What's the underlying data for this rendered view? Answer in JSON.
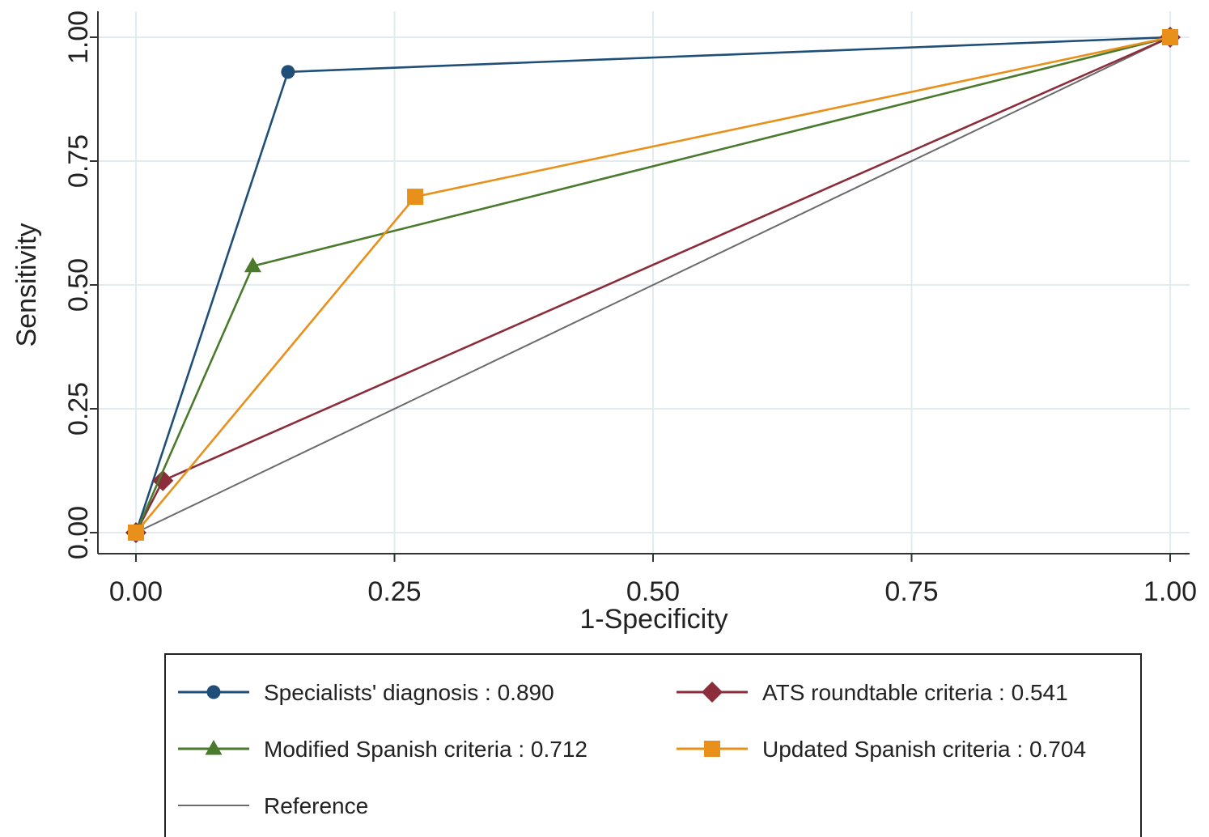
{
  "chart_data": {
    "type": "line",
    "xlabel": "1-Specificity",
    "ylabel": "Sensitivity",
    "xlim": [
      0,
      1
    ],
    "ylim": [
      0,
      1
    ],
    "xticks": [
      "0.00",
      "0.25",
      "0.50",
      "0.75",
      "1.00"
    ],
    "yticks": [
      "0.00",
      "0.25",
      "0.50",
      "0.75",
      "1.00"
    ],
    "grid": true,
    "legend_position": "bottom",
    "series": [
      {
        "name": "Specialists' diagnosis : 0.890",
        "color": "#1f4e79",
        "marker": "circle",
        "x": [
          0.0,
          0.147,
          1.0
        ],
        "y": [
          0.0,
          0.93,
          1.0
        ]
      },
      {
        "name": "ATS roundtable criteria : 0.541",
        "color": "#8b2d3a",
        "marker": "diamond",
        "x": [
          0.0,
          0.026,
          1.0
        ],
        "y": [
          0.0,
          0.105,
          1.0
        ]
      },
      {
        "name": "Modified Spanish criteria : 0.712",
        "color": "#4a7a2c",
        "marker": "triangle",
        "x": [
          0.0,
          0.113,
          1.0
        ],
        "y": [
          0.0,
          0.538,
          1.0
        ]
      },
      {
        "name": "Updated Spanish criteria : 0.704",
        "color": "#e8901a",
        "marker": "square",
        "x": [
          0.0,
          0.27,
          1.0
        ],
        "y": [
          0.0,
          0.678,
          1.0
        ]
      },
      {
        "name": "Reference",
        "color": "#6b6b6b",
        "marker": "none",
        "x": [
          0.0,
          1.0
        ],
        "y": [
          0.0,
          1.0
        ]
      }
    ]
  }
}
